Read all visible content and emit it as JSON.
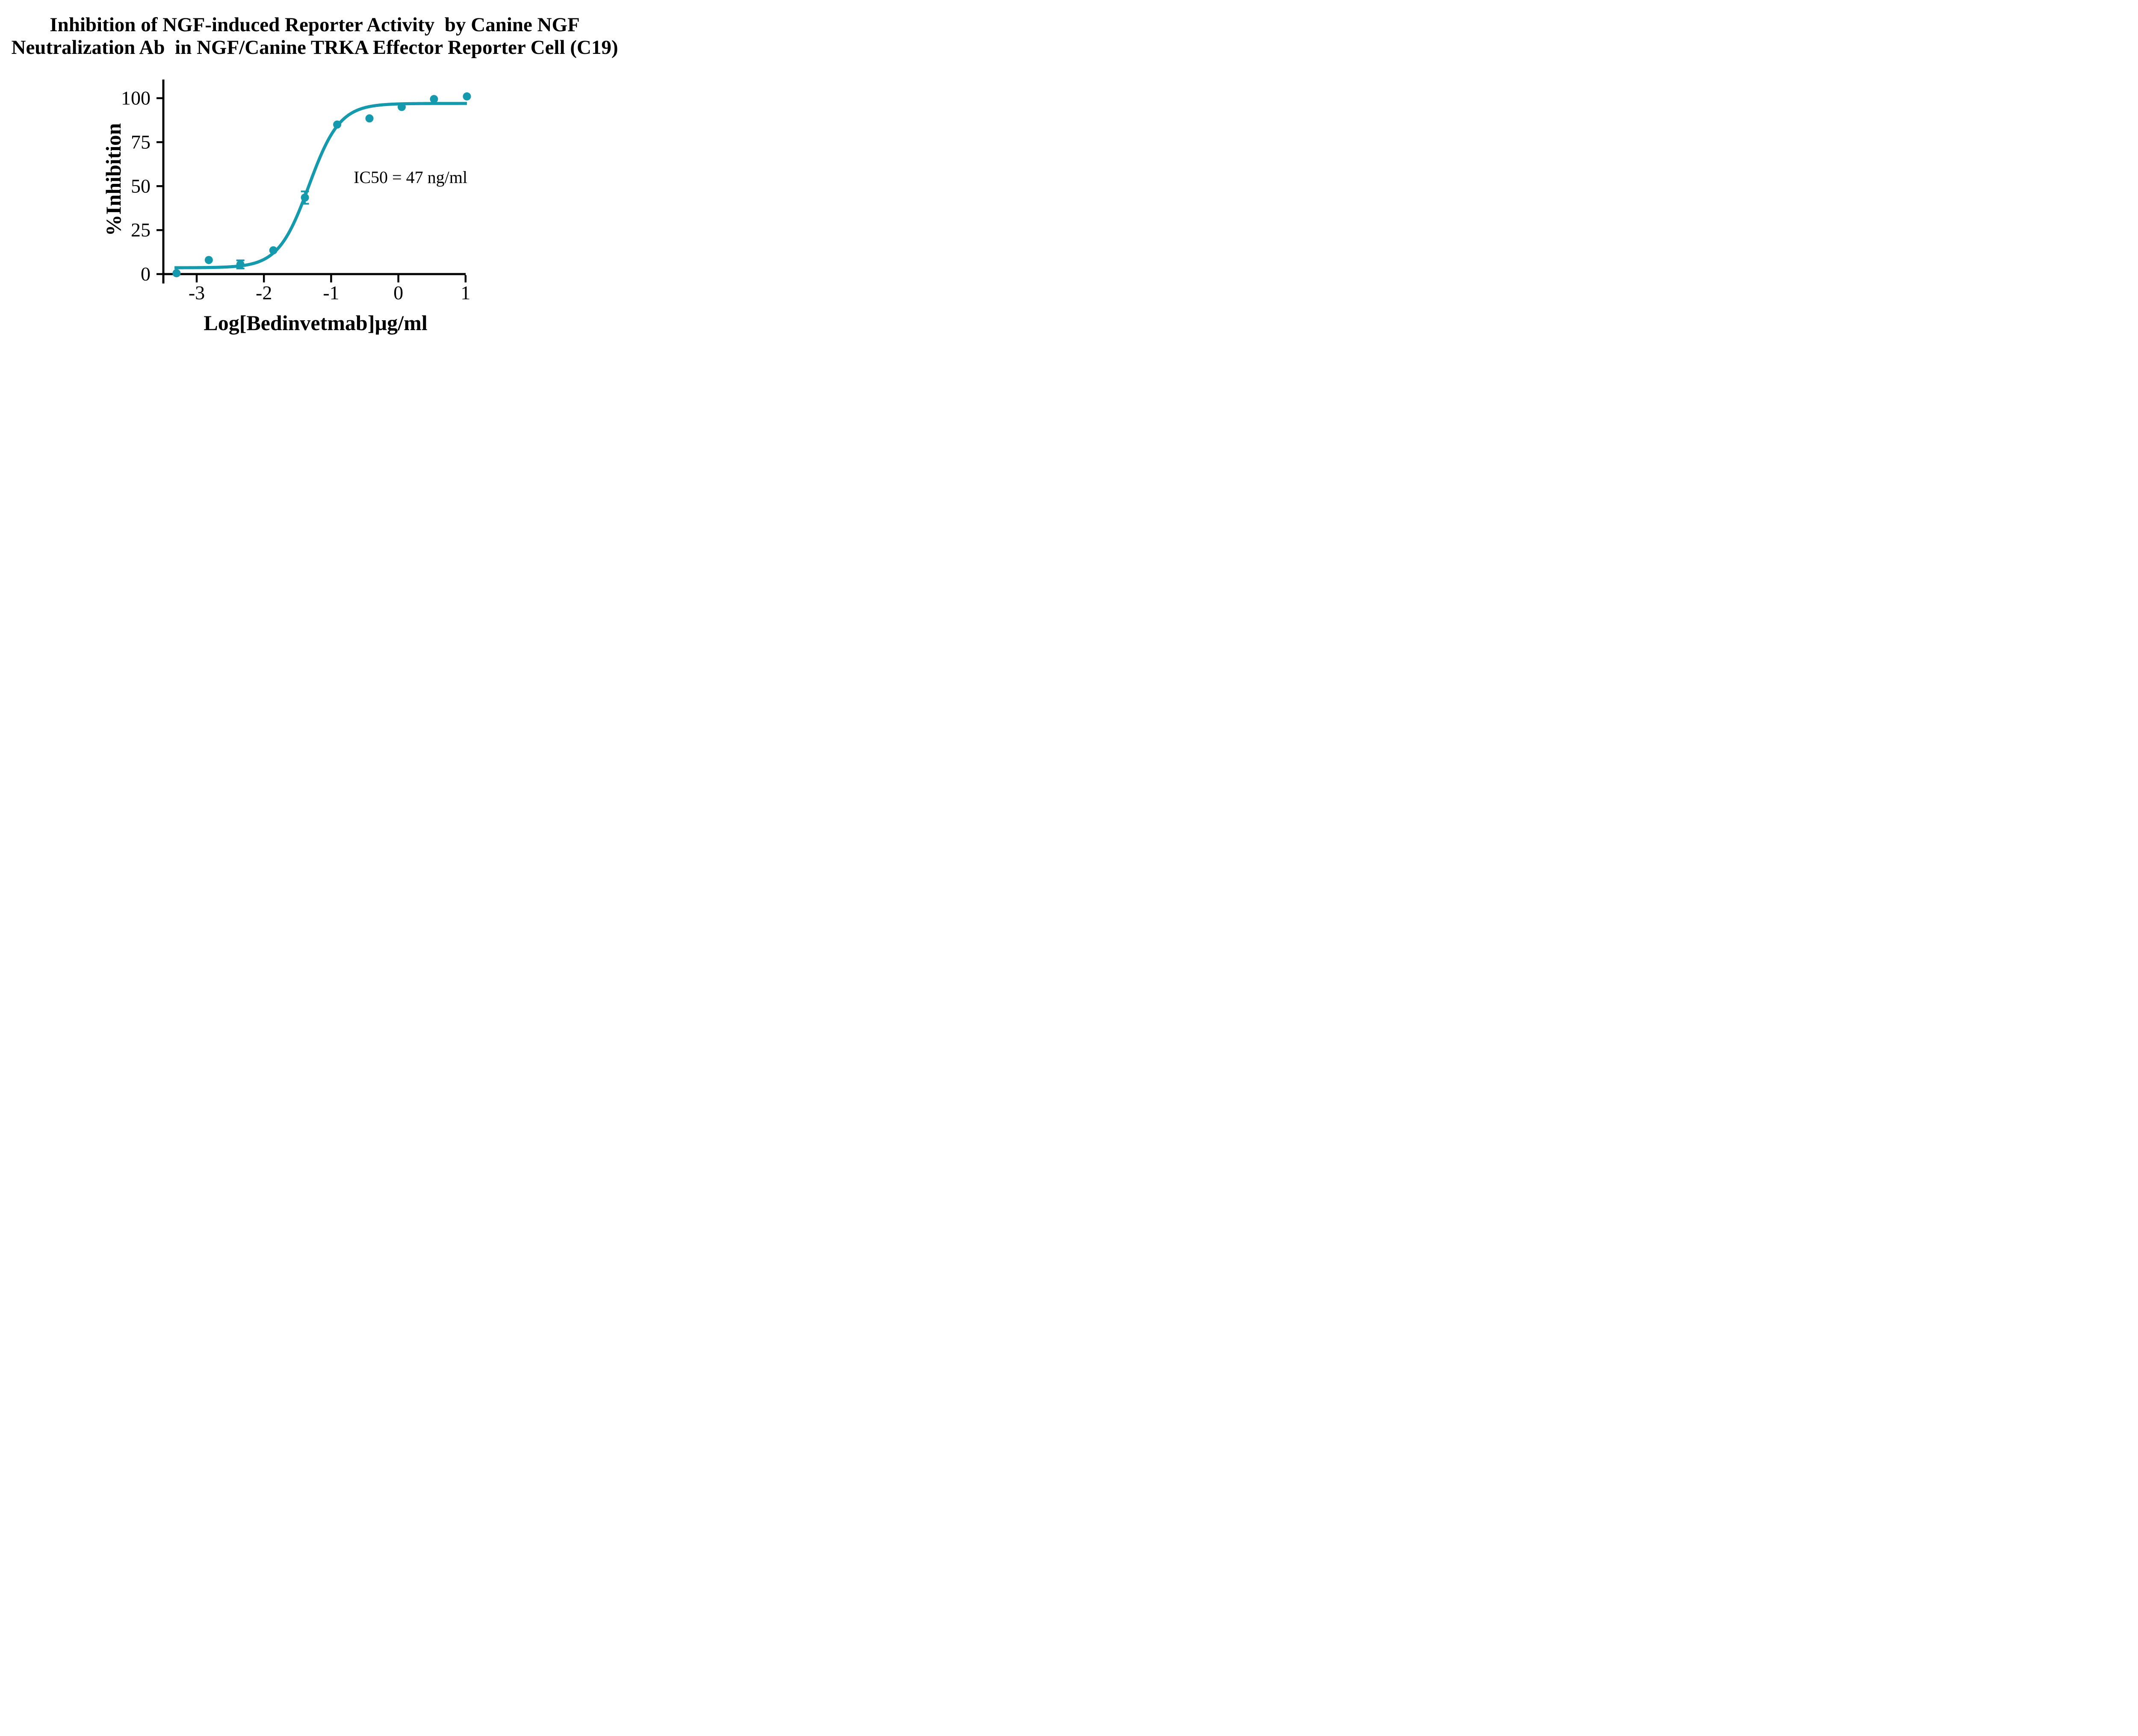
{
  "title": {
    "line1": "Inhibition of NGF-induced Reporter Activity  by Canine NGF",
    "line2": "Neutralization Ab  in NGF/Canine TRKA Effector Reporter Cell (C19)"
  },
  "chart_data": {
    "type": "scatter",
    "title": "Inhibition of NGF-induced Reporter Activity by Canine NGF Neutralization Ab in NGF/Canine TRKA Effector Reporter Cell (C19)",
    "xlabel": "Log[Bedinvetmab]µg/ml",
    "ylabel": "%Inhibition",
    "x_ticks": [
      -3,
      -2,
      -1,
      0,
      1
    ],
    "y_ticks": [
      0,
      25,
      50,
      75,
      100
    ],
    "xlim": [
      -3.5,
      1.05
    ],
    "ylim": [
      0,
      110
    ],
    "grid": false,
    "legend": false,
    "series_color": "#1599AC",
    "axis_color": "#000000",
    "points": [
      {
        "x": -3.3,
        "y": 0.5
      },
      {
        "x": -2.82,
        "y": 8.0
      },
      {
        "x": -2.35,
        "y": 5.5,
        "err": 2.3
      },
      {
        "x": -1.86,
        "y": 13.5
      },
      {
        "x": -1.39,
        "y": 43.5,
        "err": 3.5
      },
      {
        "x": -0.91,
        "y": 85.0
      },
      {
        "x": -0.43,
        "y": 88.5
      },
      {
        "x": 0.05,
        "y": 95.0
      },
      {
        "x": 0.53,
        "y": 99.5
      },
      {
        "x": 1.02,
        "y": 101.0
      }
    ],
    "fit_curve": {
      "model": "four-parameter-logistic",
      "bottom": 3.6,
      "top": 97.0,
      "log_ic50": -1.33,
      "hill_slope": 1.9,
      "x_start": -3.33,
      "x_end": 1.02
    },
    "annotation": {
      "text": "IC50 = 47 ng/ml"
    }
  }
}
